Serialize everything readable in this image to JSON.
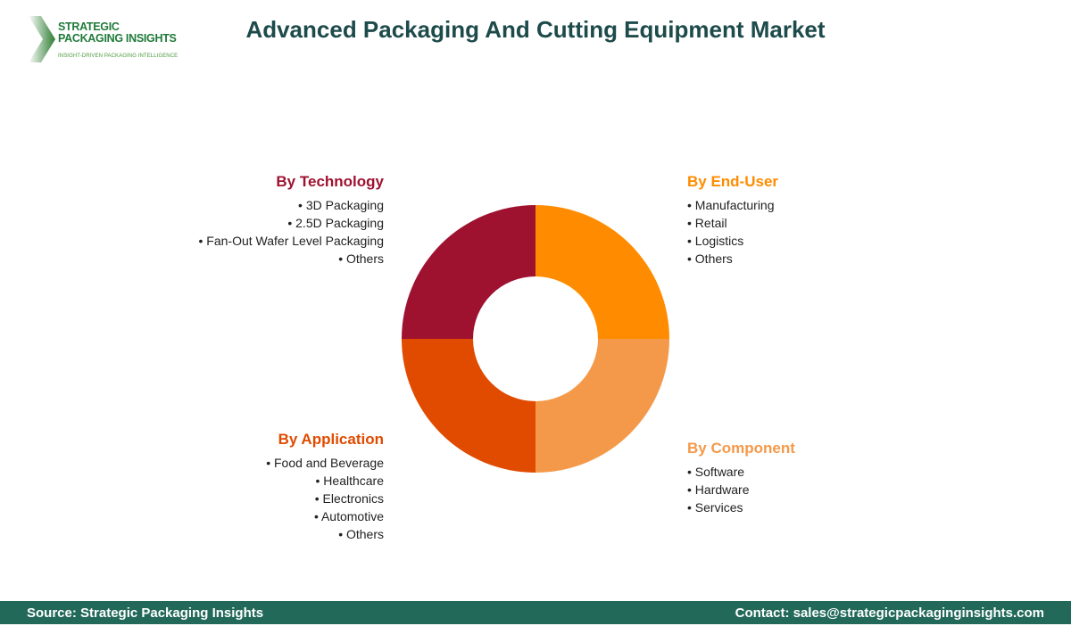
{
  "logo": {
    "line1": "STRATEGIC",
    "line2": "PACKAGING INSIGHTS",
    "tagline": "INSIGHT-DRIVEN PACKAGING INTELLIGENCE"
  },
  "title": "Advanced Packaging And Cutting Equipment Market",
  "chart_data": {
    "type": "pie",
    "style": "donut",
    "segments": [
      {
        "name": "By End-User",
        "value": 25,
        "color": "#FF8C00",
        "items": [
          "Manufacturing",
          "Retail",
          "Logistics",
          "Others"
        ]
      },
      {
        "name": "By Component",
        "value": 25,
        "color": "#F4994A",
        "items": [
          "Software",
          "Hardware",
          "Services"
        ]
      },
      {
        "name": "By Application",
        "value": 25,
        "color": "#E04B00",
        "items": [
          "Food and Beverage",
          "Healthcare",
          "Electronics",
          "Automotive",
          "Others"
        ]
      },
      {
        "name": "By Technology",
        "value": 25,
        "color": "#9E1230",
        "items": [
          "3D Packaging",
          "2.5D Packaging",
          "Fan-Out Wafer Level Packaging",
          "Others"
        ]
      }
    ]
  },
  "footer": {
    "source": "Source: Strategic Packaging Insights",
    "contact": "Contact: sales@strategicpackaginginsights.com"
  }
}
